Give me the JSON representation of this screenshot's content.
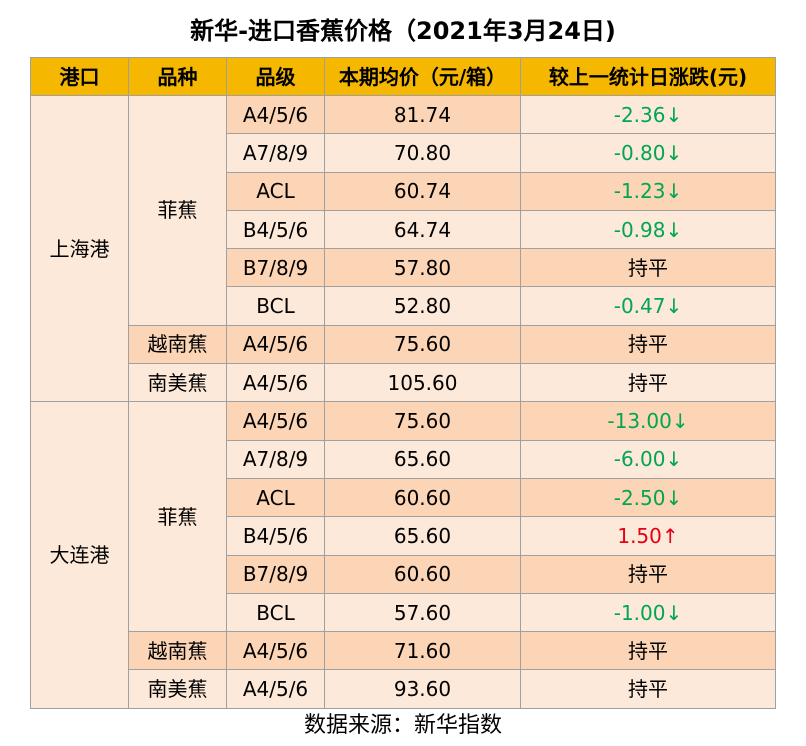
{
  "title": "新华-进口香蕉价格（2021年3月24日)",
  "headers": [
    "港口",
    "品种",
    "品级",
    "本期均价（元/箱）",
    "较上一统计日涨跌(元)"
  ],
  "rows": [
    {
      "port": "上海港",
      "variety": "菲蕉",
      "grade": "A4/5/6",
      "price": "81.74",
      "change": "-2.36↓",
      "dir": "down"
    },
    {
      "grade": "A7/8/9",
      "price": "70.80",
      "change": "-0.80↓",
      "dir": "down"
    },
    {
      "grade": "ACL",
      "price": "60.74",
      "change": "-1.23↓",
      "dir": "down"
    },
    {
      "grade": "B4/5/6",
      "price": "64.74",
      "change": "-0.98↓",
      "dir": "down"
    },
    {
      "grade": "B7/8/9",
      "price": "57.80",
      "change": "持平",
      "dir": "flat"
    },
    {
      "grade": "BCL",
      "price": "52.80",
      "change": "-0.47↓",
      "dir": "down"
    },
    {
      "variety": "越南蕉",
      "grade": "A4/5/6",
      "price": "75.60",
      "change": "持平",
      "dir": "flat"
    },
    {
      "variety": "南美蕉",
      "grade": "A4/5/6",
      "price": "105.60",
      "change": "持平",
      "dir": "flat"
    },
    {
      "port": "大连港",
      "variety": "菲蕉",
      "grade": "A4/5/6",
      "price": "75.60",
      "change": "-13.00↓",
      "dir": "down"
    },
    {
      "grade": "A7/8/9",
      "price": "65.60",
      "change": "-6.00↓",
      "dir": "down"
    },
    {
      "grade": "ACL",
      "price": "60.60",
      "change": "-2.50↓",
      "dir": "down"
    },
    {
      "grade": "B4/5/6",
      "price": "65.60",
      "change": "1.50↑",
      "dir": "up"
    },
    {
      "grade": "B7/8/9",
      "price": "60.60",
      "change": "持平",
      "dir": "flat"
    },
    {
      "grade": "BCL",
      "price": "57.60",
      "change": "-1.00↓",
      "dir": "down"
    },
    {
      "variety": "越南蕉",
      "grade": "A4/5/6",
      "price": "71.60",
      "change": "持平",
      "dir": "flat"
    },
    {
      "variety": "南美蕉",
      "grade": "A4/5/6",
      "price": "93.60",
      "change": "持平",
      "dir": "flat"
    }
  ],
  "source": "数据来源：新华指数",
  "colors": {
    "header": "#f5b700",
    "up": "#e60012",
    "down": "#00a651"
  }
}
